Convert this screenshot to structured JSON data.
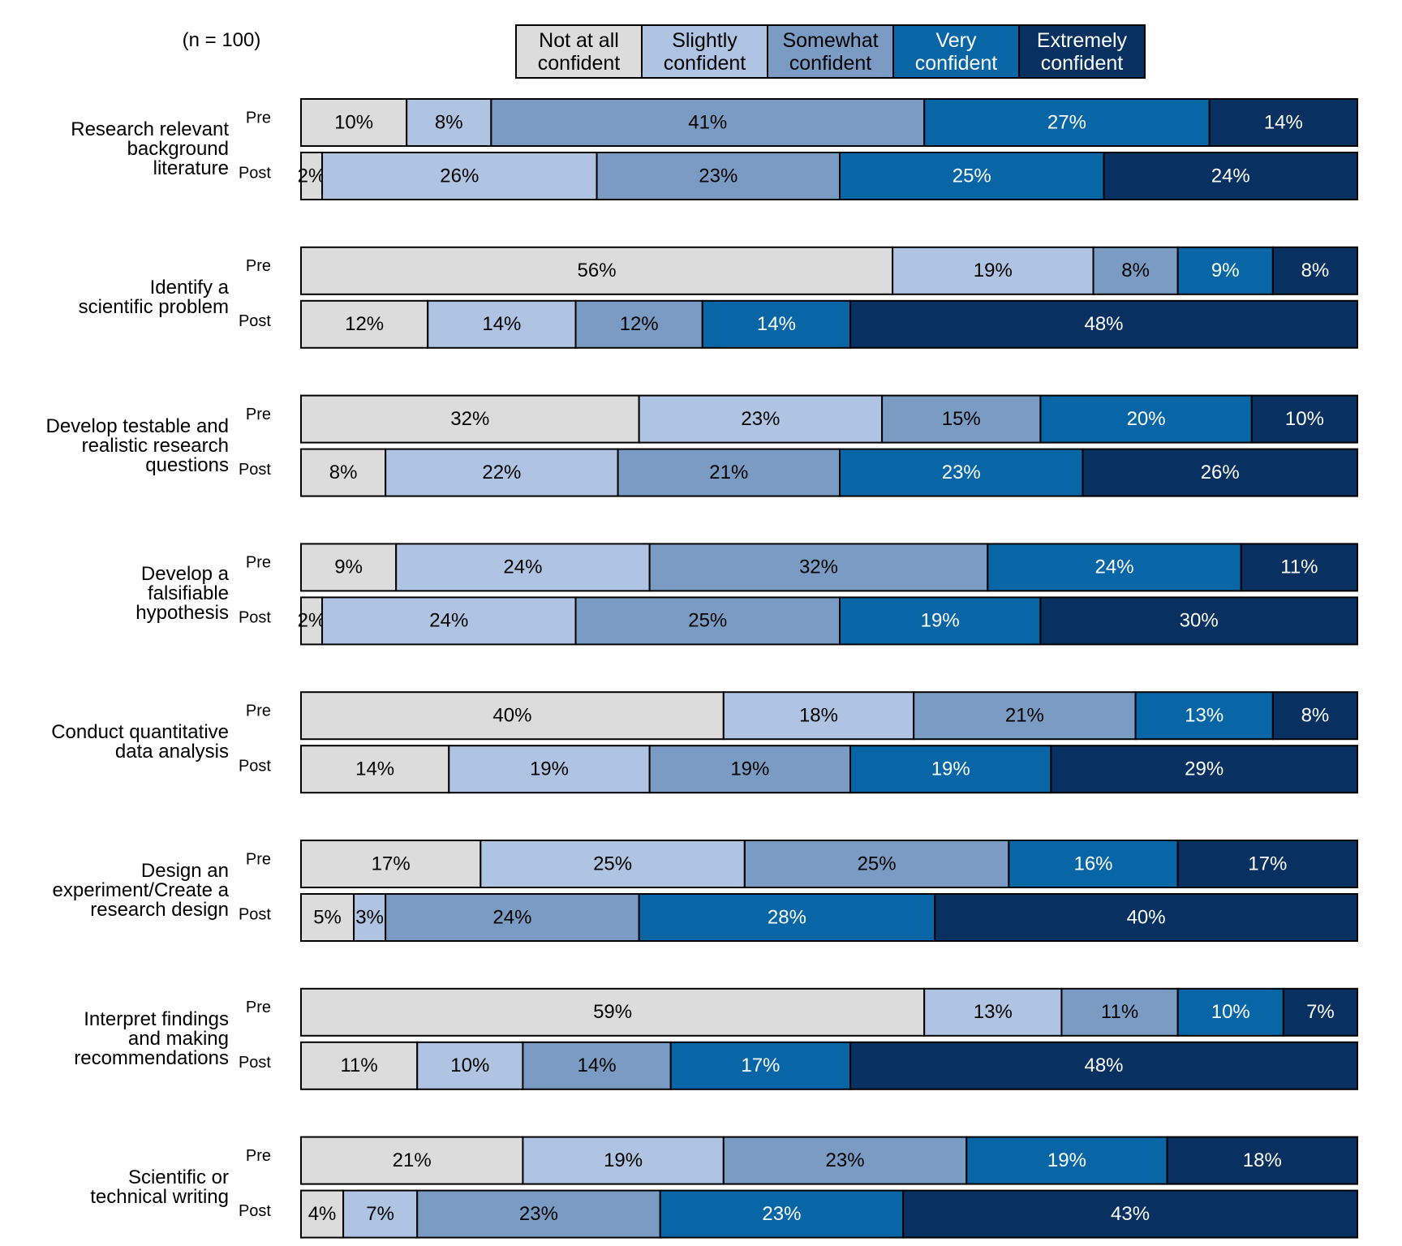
{
  "chart_data": {
    "type": "bar",
    "orientation": "horizontal",
    "stacked": true,
    "note": "(n = 100)",
    "groups": [
      "Research relevant\nbackground\nliterature",
      "Identify a\nscientific problem",
      "Develop testable and\nrealistic research\nquestions",
      "Develop a\nfalsifiable\nhypothesis",
      "Conduct quantitative\ndata analysis",
      "Design an\nexperiment/Create a\nresearch design",
      "Interpret findings\nand making\nrecommendations",
      "Scientific or\ntechnical writing"
    ],
    "categories": [
      "Pre",
      "Post",
      "Pre",
      "Post",
      "Pre",
      "Post",
      "Pre",
      "Post",
      "Pre",
      "Post",
      "Pre",
      "Post",
      "Pre",
      "Post",
      "Pre",
      "Post"
    ],
    "legend": "top",
    "series": [
      {
        "name": "Not at all\nconfident",
        "color": "#dcdcdc",
        "values": [
          10,
          2,
          56,
          12,
          32,
          8,
          9,
          2,
          40,
          14,
          17,
          5,
          59,
          11,
          21,
          4
        ],
        "value_labels": [
          "10%",
          "2%",
          "56%",
          "12%",
          "32%",
          "8%",
          "9%",
          "2%",
          "40%",
          "14%",
          "17%",
          "5%",
          "59%",
          "11%",
          "21%",
          "4%"
        ]
      },
      {
        "name": "Slightly\nconfident",
        "color": "#afc3e2",
        "values": [
          8,
          26,
          19,
          14,
          23,
          22,
          24,
          24,
          18,
          19,
          25,
          3,
          13,
          10,
          19,
          7
        ],
        "value_labels": [
          "8%",
          "26%",
          "19%",
          "14%",
          "23%",
          "22%",
          "24%",
          "24%",
          "18%",
          "19%",
          "25%",
          "3%",
          "13%",
          "10%",
          "19%",
          "7%"
        ]
      },
      {
        "name": "Somewhat\nconfident",
        "color": "#7a9cc4",
        "values": [
          41,
          23,
          8,
          12,
          15,
          21,
          32,
          25,
          21,
          19,
          25,
          24,
          11,
          14,
          23,
          23
        ],
        "value_labels": [
          "41%",
          "23%",
          "8%",
          "12%",
          "15%",
          "21%",
          "32%",
          "25%",
          "21%",
          "19%",
          "25%",
          "24%",
          "11%",
          "14%",
          "23%",
          "23%"
        ]
      },
      {
        "name": "Very\nconfident",
        "color": "#0866a6",
        "values": [
          27,
          25,
          9,
          14,
          20,
          23,
          24,
          19,
          13,
          19,
          16,
          28,
          10,
          17,
          19,
          23
        ],
        "value_labels": [
          "27%",
          "25%",
          "9%",
          "14%",
          "20%",
          "23%",
          "24%",
          "19%",
          "13%",
          "19%",
          "16%",
          "28%",
          "10%",
          "17%",
          "19%",
          "23%"
        ]
      },
      {
        "name": "Extremely\nconfident",
        "color": "#083161",
        "values": [
          14,
          24,
          8,
          48,
          10,
          26,
          11,
          30,
          8,
          29,
          17,
          40,
          7,
          48,
          18,
          43
        ],
        "value_labels": [
          "14%",
          "24%",
          "8%",
          "48%",
          "10%",
          "26%",
          "11%",
          "30%",
          "8%",
          "29%",
          "17%",
          "40%",
          "7%",
          "48%",
          "18%",
          "43%"
        ]
      }
    ]
  }
}
